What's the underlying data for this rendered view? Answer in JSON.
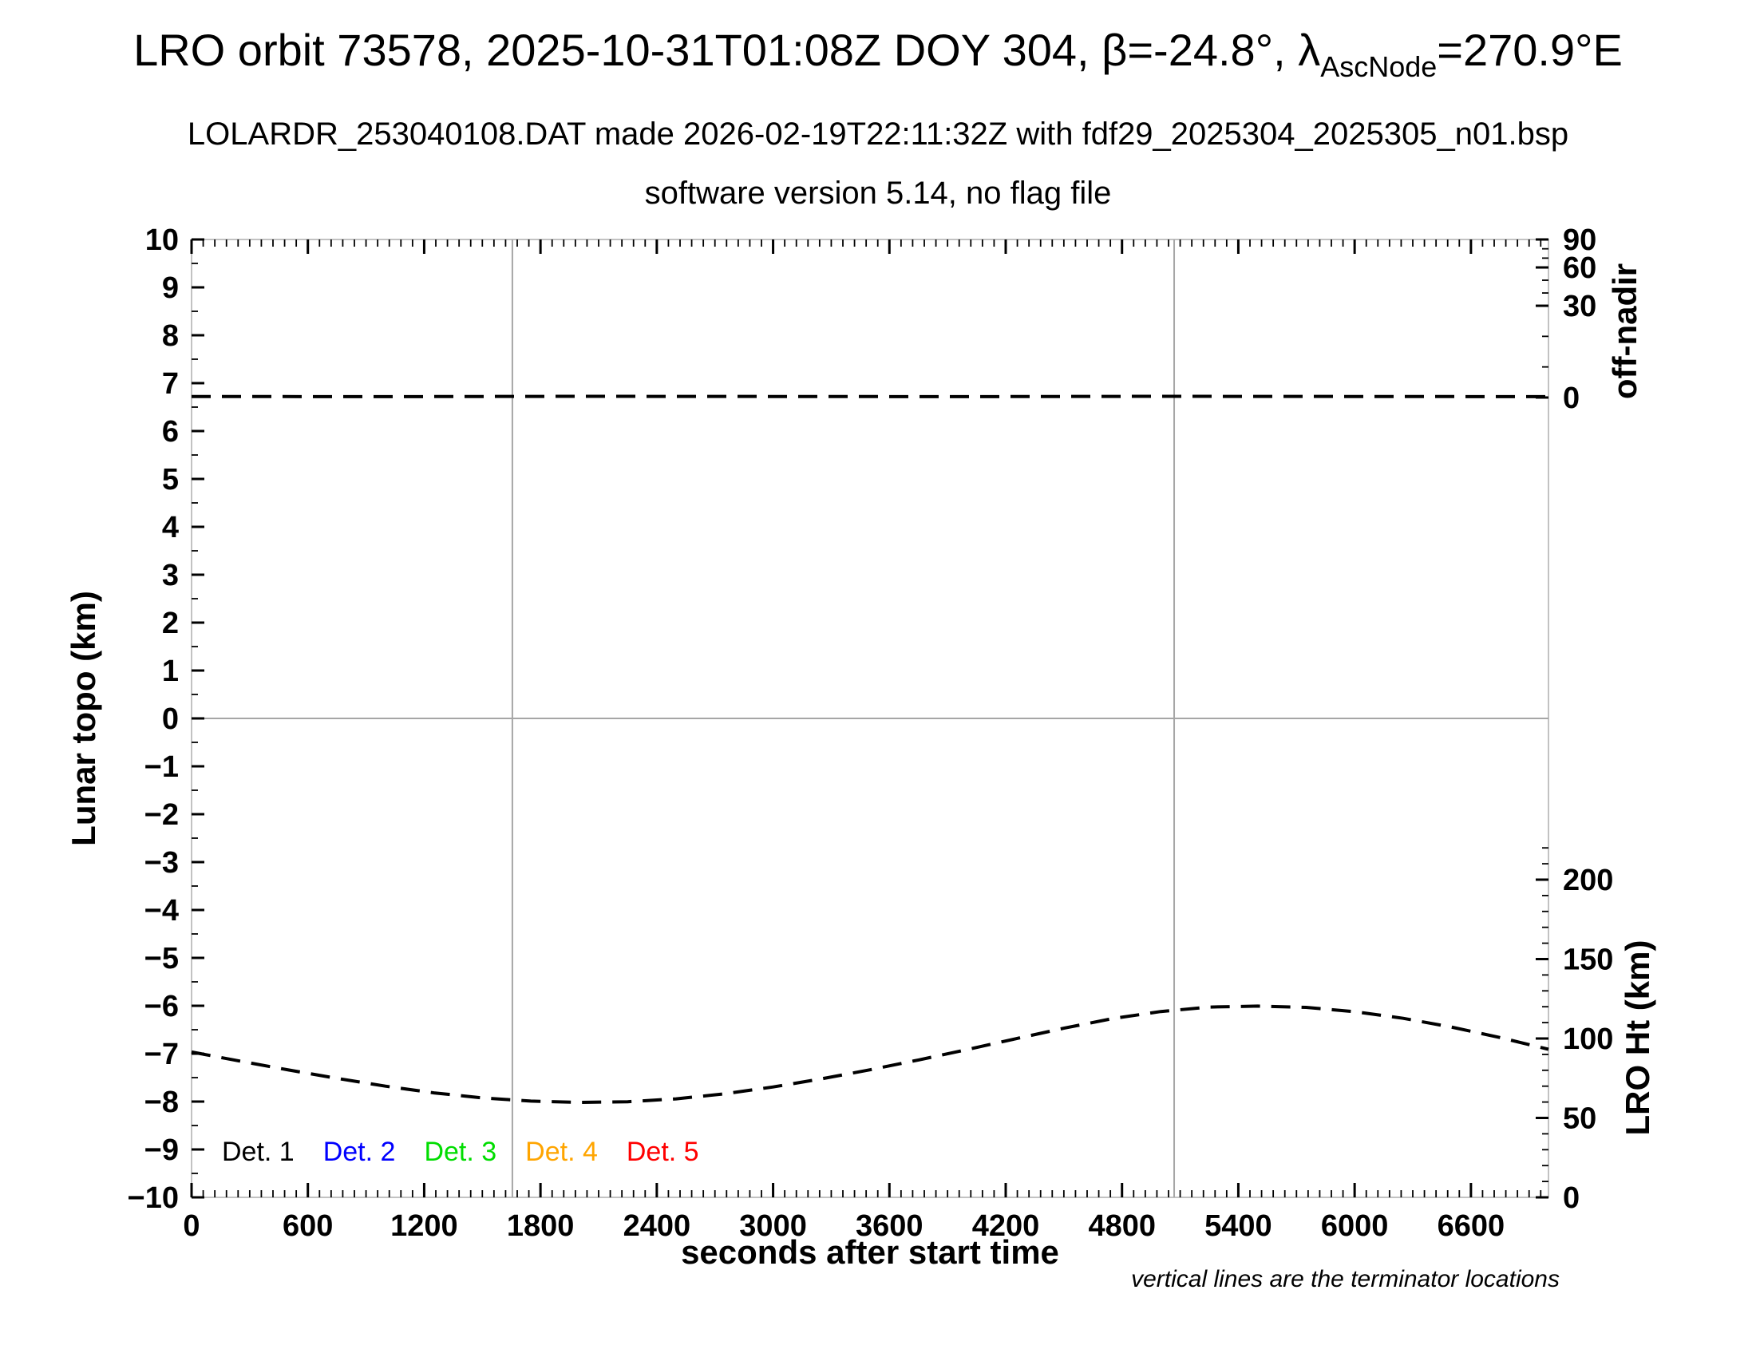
{
  "header": {
    "title_prefix": "LRO orbit 73578, 2025-10-31T01:08Z DOY 304, β=-24.8°, λ",
    "title_subscript": "AscNode",
    "title_suffix": "=270.9°E",
    "subtitle": "LOLARDR_253040108.DAT made 2026-02-19T22:11:32Z with fdf29_2025304_2025305_n01.bsp",
    "software_line": "software version 5.14, no flag file"
  },
  "chart_data": {
    "type": "line",
    "title": "LRO orbit 73578, 2025-10-31T01:08Z DOY 304",
    "x_axis": {
      "label": "seconds after start time",
      "min": 0,
      "max": 7000,
      "major_tick_interval": 600,
      "minor_tick_interval": 60,
      "tick_labels": [
        "0",
        "600",
        "1200",
        "1800",
        "2400",
        "3000",
        "3600",
        "4200",
        "4800",
        "5400",
        "6000",
        "6600"
      ],
      "tick_values": [
        0,
        600,
        1200,
        1800,
        2400,
        3000,
        3600,
        4200,
        4800,
        5400,
        6000,
        6600
      ]
    },
    "y_left_axis": {
      "label": "Lunar topo (km)",
      "min": -10,
      "max": 10,
      "major_tick_interval": 1,
      "minor_tick_interval": 0.5,
      "tick_labels": [
        "10",
        "9",
        "8",
        "7",
        "6",
        "5",
        "4",
        "3",
        "2",
        "1",
        "0",
        "−1",
        "−2",
        "−3",
        "−4",
        "−5",
        "−6",
        "−7",
        "−8",
        "−9",
        "−10"
      ],
      "tick_values": [
        10,
        9,
        8,
        7,
        6,
        5,
        4,
        3,
        2,
        1,
        0,
        -1,
        -2,
        -3,
        -4,
        -5,
        -6,
        -7,
        -8,
        -9,
        -10
      ]
    },
    "y_right_top_axis": {
      "label": "off-nadir",
      "units": "degrees",
      "tick_labels": [
        "90",
        "60",
        "30",
        "0"
      ],
      "tick_values": [
        90,
        60,
        30,
        0
      ],
      "minor_tick_values": [
        80,
        70,
        50,
        40,
        20,
        10
      ]
    },
    "y_right_bottom_axis": {
      "label": "LRO Ht (km)",
      "min": 0,
      "max": 200,
      "major_tick_interval": 50,
      "minor_tick_interval": 10,
      "tick_labels": [
        "200",
        "150",
        "100",
        "50",
        "0"
      ],
      "tick_values": [
        200,
        150,
        100,
        50,
        0
      ]
    },
    "reference_lines": {
      "horizontal_topo_zero_km": 0,
      "terminator_seconds": [
        1655,
        5069
      ]
    },
    "series": [
      {
        "name": "spacecraft off-nadir angle",
        "axis": "y_right_top",
        "style": "dashed",
        "color": "#000000",
        "x_seconds": [
          0,
          1000,
          2000,
          3000,
          4000,
          5000,
          6000,
          7000
        ],
        "y_degrees": [
          0.35,
          0.3,
          0.4,
          0.35,
          0.3,
          0.4,
          0.35,
          0.3
        ]
      },
      {
        "name": "LRO height above surface",
        "axis": "y_right_bottom",
        "style": "dashed",
        "color": "#000000",
        "x_seconds": [
          0,
          250,
          500,
          750,
          1000,
          1250,
          1500,
          1750,
          2000,
          2250,
          2500,
          2750,
          3000,
          3250,
          3500,
          3750,
          4000,
          4250,
          4500,
          4750,
          5000,
          5250,
          5500,
          5750,
          6000,
          6250,
          6500,
          6750,
          7000
        ],
        "y_km": [
          91.5,
          85.8,
          80.2,
          74.9,
          70.0,
          65.8,
          62.6,
          60.6,
          59.8,
          60.2,
          62.0,
          65.2,
          69.5,
          74.6,
          80.3,
          86.5,
          93.0,
          99.8,
          106.5,
          112.5,
          117.0,
          119.8,
          120.4,
          119.6,
          116.9,
          112.7,
          107.2,
          100.6,
          93.2
        ]
      }
    ],
    "legend": [
      {
        "label": "Det. 1",
        "color": "#000000"
      },
      {
        "label": "Det. 2",
        "color": "#0000ff"
      },
      {
        "label": "Det. 3",
        "color": "#00dd00"
      },
      {
        "label": "Det. 4",
        "color": "#ffa500"
      },
      {
        "label": "Det. 5",
        "color": "#ff0000"
      }
    ],
    "footnote": "vertical lines are the terminator locations",
    "layout": {
      "grid": "off",
      "legend_position": "bottom-left inside plot"
    }
  },
  "colors": {
    "axis_frame": "#b3b3b3",
    "reference_gray": "#a6a6a6",
    "curve": "#000000"
  }
}
